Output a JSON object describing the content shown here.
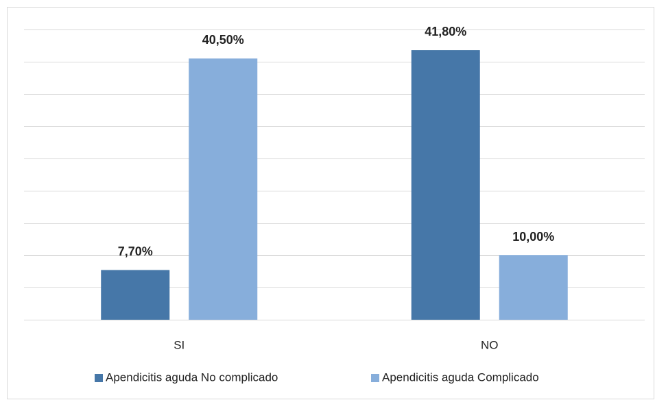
{
  "chart_data": {
    "type": "bar",
    "categories": [
      "SI",
      "NO"
    ],
    "series": [
      {
        "name": "Apendicitis aguda No complicado",
        "color": "#4677a8",
        "values": [
          7.7,
          41.8
        ],
        "value_labels": [
          "7,70%",
          "41,80%"
        ]
      },
      {
        "name": "Apendicitis aguda Complicado",
        "color": "#87aedb",
        "values": [
          40.5,
          10.0
        ],
        "value_labels": [
          "40,50%",
          "10,00%"
        ]
      }
    ],
    "ylim": [
      0,
      45
    ],
    "yticks": [
      0,
      5,
      10,
      15,
      20,
      25,
      30,
      35,
      40,
      45
    ],
    "grid": true,
    "legend": "bottom"
  }
}
